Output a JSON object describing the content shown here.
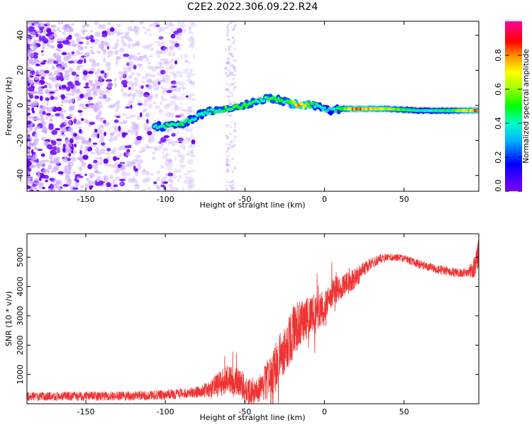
{
  "title": "C2E2.2022.306.09.22.R24",
  "chart_data": [
    {
      "type": "heatmap",
      "xlabel": "Height of straight line (km)",
      "ylabel": "Frequency (Hz)",
      "xlim": [
        -187,
        97
      ],
      "ylim": [
        -49,
        48
      ],
      "xticks": [
        -150,
        -100,
        -50,
        0,
        50
      ],
      "xtick_labels": [
        "-150",
        "-100",
        "-50",
        "0",
        "50"
      ],
      "yticks": [
        -40,
        -20,
        0,
        20,
        40
      ],
      "ytick_labels": [
        "-40",
        "-20",
        "0",
        "20",
        "40"
      ],
      "colorbar": {
        "label": "Normalized spectral amplitude",
        "range": [
          0,
          1
        ],
        "ticks": [
          0,
          0.2,
          0.4,
          0.6,
          0.8
        ],
        "tick_labels": [
          "0.0",
          "0.2",
          "0.4",
          "0.6",
          "0.8"
        ],
        "colormap": "gist_rainbow (violet to magenta)"
      },
      "ridge": {
        "x": [
          -107,
          -100,
          -90,
          -80,
          -70,
          -60,
          -50,
          -40,
          -32,
          -25,
          -15,
          -5,
          0,
          5,
          10,
          20,
          40,
          60,
          80,
          95
        ],
        "y": [
          -12,
          -12,
          -11,
          -6,
          -3,
          -2,
          0,
          3,
          4,
          2,
          0,
          0,
          -2,
          -3,
          -2,
          -2,
          -2,
          -3,
          -3,
          -3
        ],
        "amplitude": [
          0.45,
          0.5,
          0.5,
          0.45,
          0.5,
          0.55,
          0.55,
          0.5,
          0.55,
          0.5,
          0.95,
          0.45,
          0.4,
          0.4,
          0.55,
          0.95,
          0.7,
          0.45,
          0.55,
          0.9
        ]
      },
      "noise_region_x": [
        -187,
        -100
      ]
    },
    {
      "type": "line",
      "xlabel": "Height of straight line (km)",
      "ylabel": "SNR (10 * v/v)",
      "xlim": [
        -187,
        97
      ],
      "ylim": [
        0,
        5800
      ],
      "xticks": [
        -150,
        -100,
        -50,
        0,
        50
      ],
      "xtick_labels": [
        "-150",
        "-100",
        "-50",
        "0",
        "50"
      ],
      "yticks": [
        1000,
        2000,
        3000,
        4000,
        5000
      ],
      "ytick_labels": [
        "1000",
        "2000",
        "3000",
        "4000",
        "5000"
      ],
      "color": "#ee3333",
      "series": [
        {
          "name": "SNR",
          "x": [
            -187,
            -150,
            -120,
            -100,
            -90,
            -80,
            -75,
            -70,
            -65,
            -60,
            -55,
            -50,
            -45,
            -40,
            -35,
            -30,
            -25,
            -20,
            -15,
            -10,
            -5,
            0,
            5,
            10,
            15,
            20,
            25,
            30,
            35,
            40,
            45,
            50,
            55,
            60,
            70,
            80,
            90,
            95,
            97
          ],
          "y": [
            250,
            260,
            270,
            300,
            350,
            400,
            450,
            550,
            700,
            850,
            750,
            500,
            400,
            500,
            900,
            1300,
            1900,
            2400,
            2800,
            2900,
            3100,
            3300,
            3800,
            4000,
            4100,
            4300,
            4600,
            4800,
            4950,
            5000,
            5000,
            4950,
            4850,
            4750,
            4600,
            4500,
            4450,
            4700,
            5200
          ],
          "noise_amplitude": [
            150,
            160,
            160,
            170,
            180,
            190,
            250,
            350,
            450,
            500,
            550,
            500,
            450,
            500,
            700,
            850,
            900,
            900,
            800,
            750,
            700,
            600,
            500,
            450,
            400,
            350,
            250,
            200,
            150,
            130,
            130,
            130,
            140,
            150,
            150,
            160,
            160,
            400,
            500
          ]
        }
      ]
    }
  ]
}
